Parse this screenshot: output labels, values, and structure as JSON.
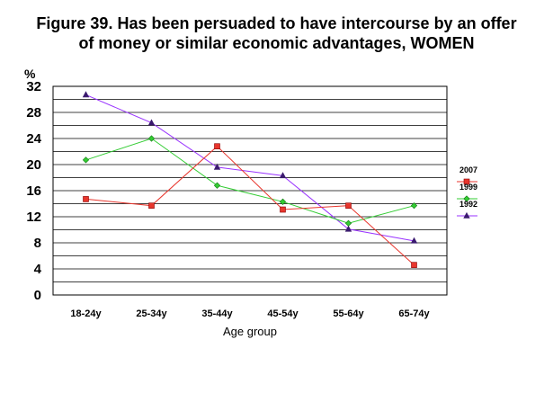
{
  "chart_data": {
    "type": "line",
    "title_line1": "Figure 39. Has been persuaded to have intercourse by an offer",
    "title_line2": "of money or similar economic advantages, WOMEN",
    "ylabel": "%",
    "xlabel": "Age group",
    "categories": [
      "18-24y",
      "25-34y",
      "35-44y",
      "45-54y",
      "55-64y",
      "65-74y"
    ],
    "ylim": [
      0,
      32
    ],
    "yticks": [
      0,
      4,
      8,
      12,
      16,
      20,
      24,
      28,
      32
    ],
    "grid": true,
    "legend_position": "right",
    "series": [
      {
        "name": "2007",
        "color": "#e8362d",
        "marker": "square",
        "values": [
          14.7,
          13.7,
          22.8,
          13.1,
          13.7,
          4.6
        ]
      },
      {
        "name": "1999",
        "color": "#33cc33",
        "marker": "diamond",
        "values": [
          20.7,
          24.0,
          16.8,
          14.3,
          11.0,
          13.7
        ]
      },
      {
        "name": "1992",
        "color": "#9933ff",
        "marker": "triangle",
        "values": [
          30.7,
          26.4,
          19.6,
          18.3,
          10.1,
          8.3
        ]
      }
    ]
  }
}
